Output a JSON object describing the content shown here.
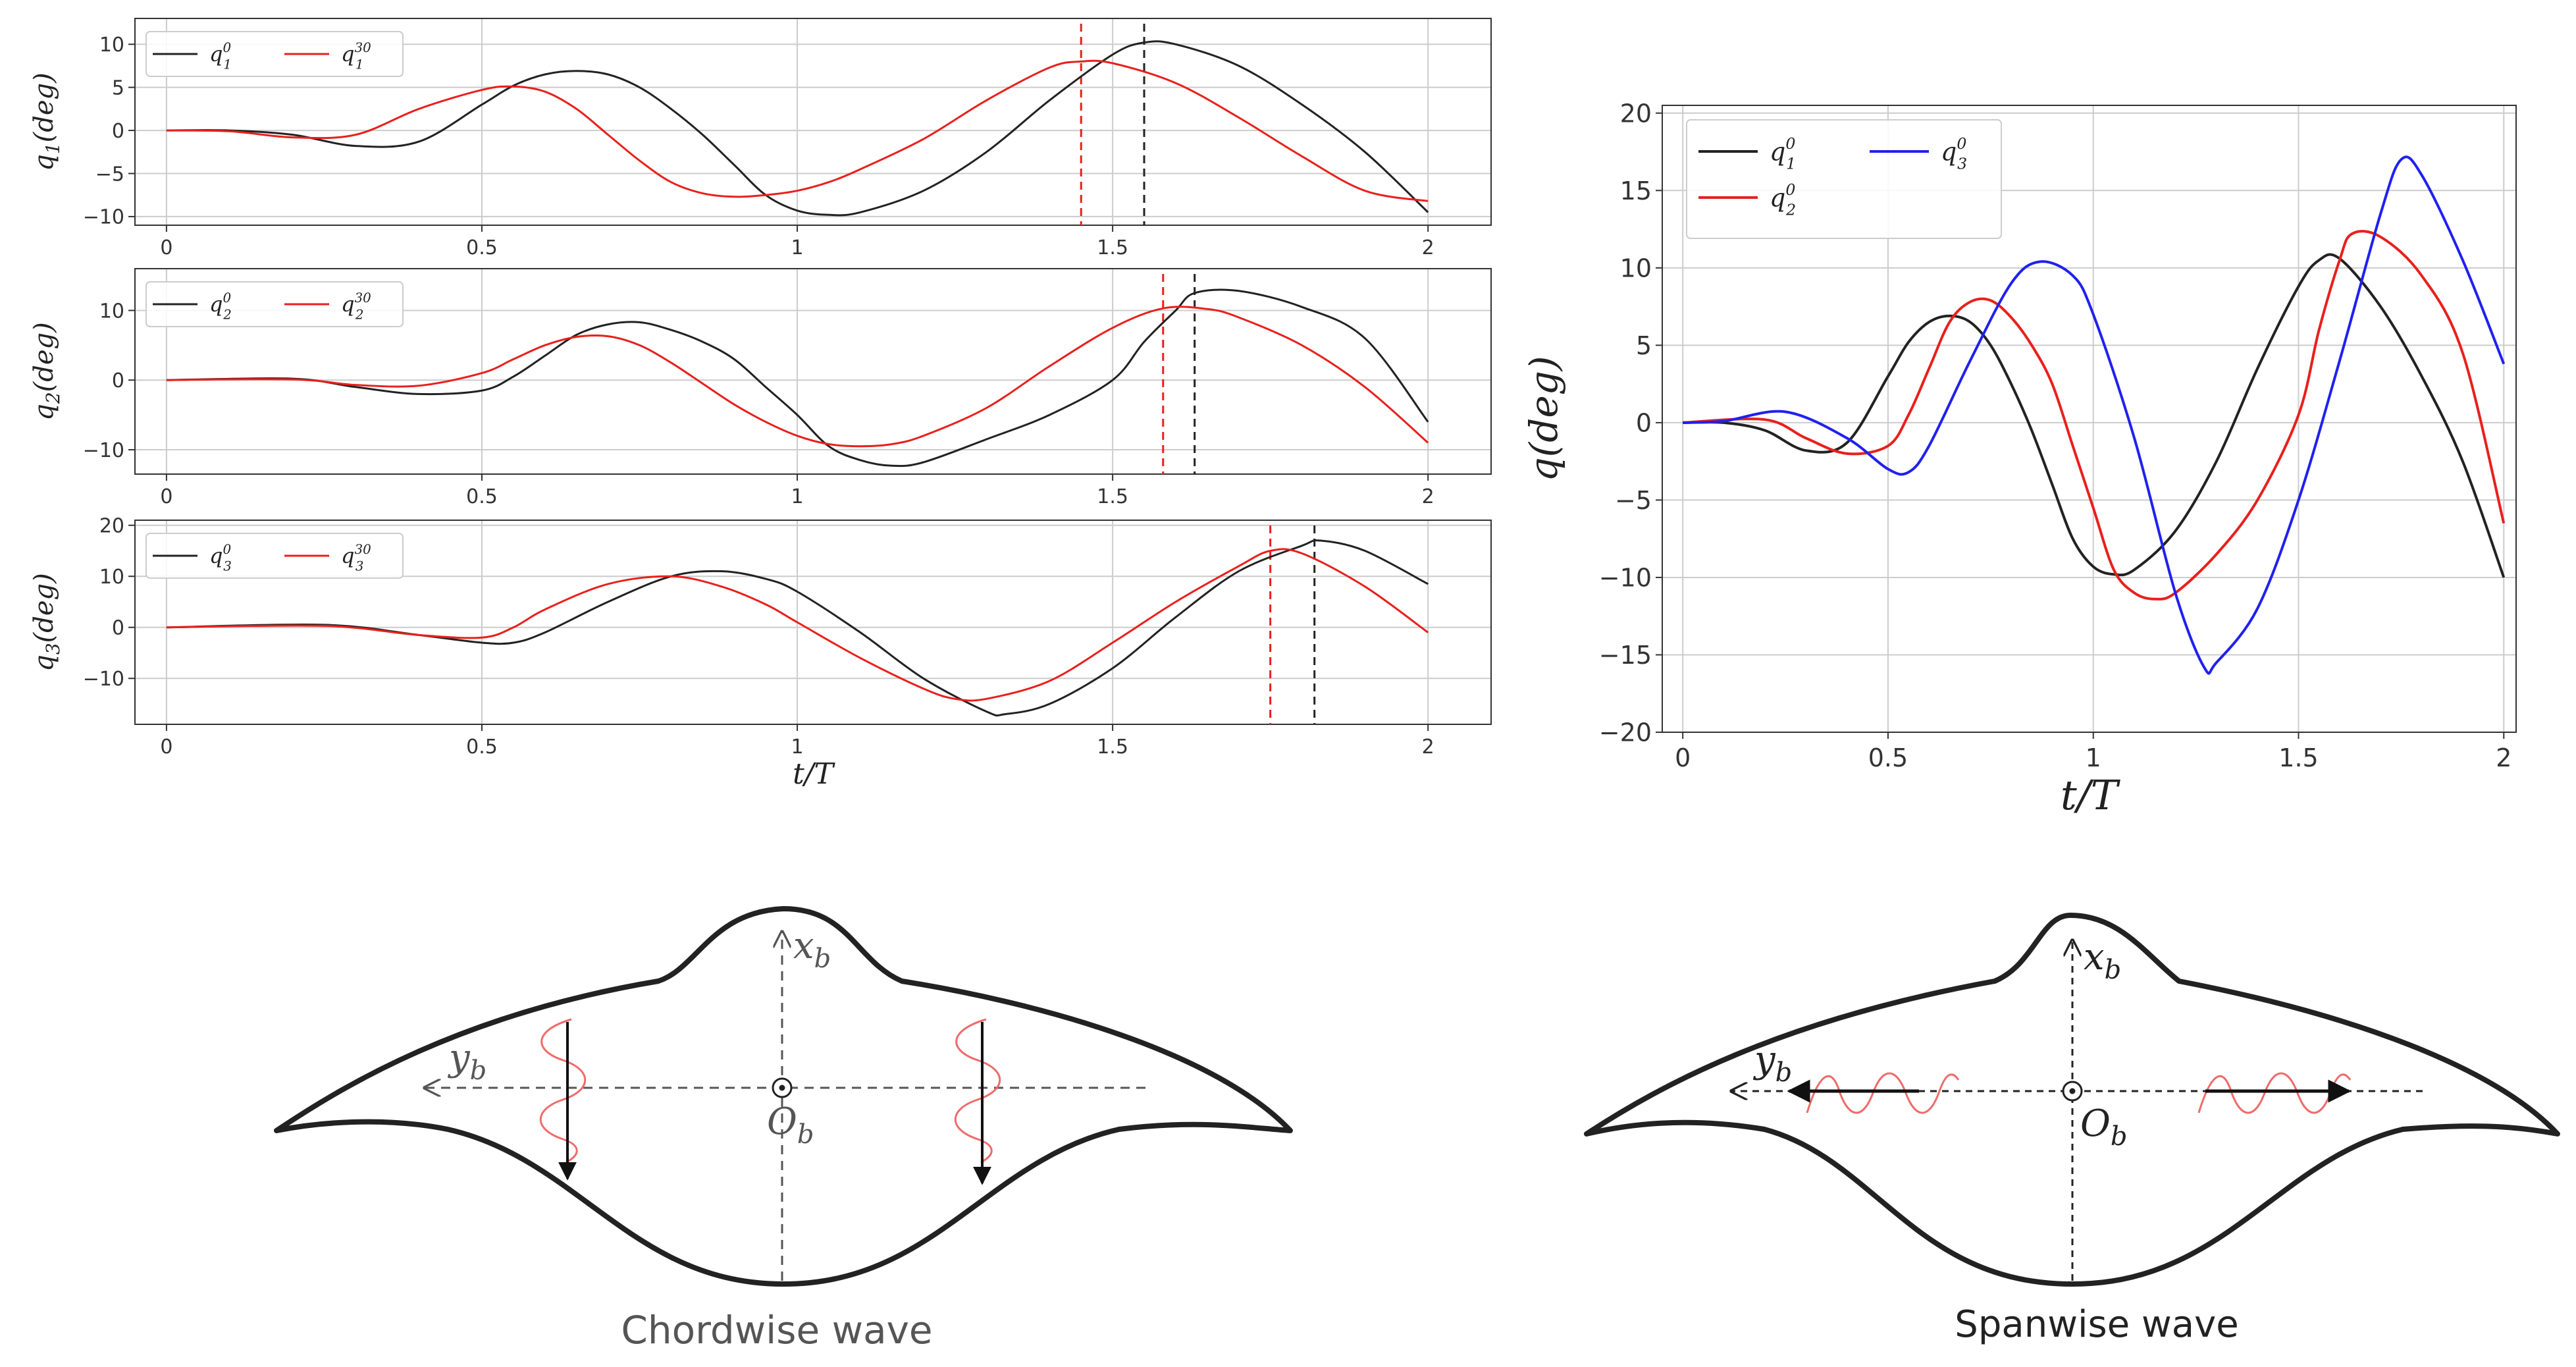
{
  "colors": {
    "black": "#222222",
    "red": "#e8201c",
    "blue": "#2020f0",
    "grid": "#cccccc"
  },
  "chart_data": [
    {
      "id": "p1",
      "type": "line",
      "ylabel": "q1(deg)",
      "xlabel": "",
      "xlim": [
        -0.05,
        2.1
      ],
      "ylim": [
        -11,
        13
      ],
      "xticks": [
        0,
        0.5,
        1,
        1.5,
        2
      ],
      "xtick_labels": [
        "0",
        "0.5",
        "1",
        "1.5",
        "2"
      ],
      "yticks": [
        -10,
        -5,
        0,
        5,
        10
      ],
      "ytick_labels": [
        "−10",
        "−5",
        "0",
        "5",
        "10"
      ],
      "legend": {
        "location": "top-left",
        "columns": 2
      },
      "series": [
        {
          "name": "q",
          "sub": "1",
          "sup": "0",
          "label": "q_1^0",
          "color_key": "black",
          "x": [
            0,
            0.1,
            0.2,
            0.3,
            0.4,
            0.5,
            0.55,
            0.6,
            0.65,
            0.7,
            0.75,
            0.8,
            0.85,
            0.9,
            0.95,
            1.0,
            1.05,
            1.1,
            1.2,
            1.3,
            1.4,
            1.5,
            1.55,
            1.6,
            1.7,
            1.8,
            1.9,
            2.0
          ],
          "y": [
            0,
            0,
            -0.5,
            -1.8,
            -1.3,
            3.0,
            5.2,
            6.5,
            6.9,
            6.5,
            5.0,
            2.5,
            -0.5,
            -4.0,
            -7.5,
            -9.3,
            -9.8,
            -9.5,
            -7.0,
            -2.5,
            3.5,
            8.8,
            10.2,
            10.0,
            7.5,
            3.0,
            -2.5,
            -9.5
          ]
        },
        {
          "name": "q",
          "sub": "1",
          "sup": "30",
          "label": "q_1^30",
          "color_key": "red",
          "x": [
            0,
            0.1,
            0.2,
            0.3,
            0.4,
            0.5,
            0.55,
            0.6,
            0.65,
            0.7,
            0.75,
            0.8,
            0.85,
            0.9,
            0.95,
            1.0,
            1.05,
            1.1,
            1.2,
            1.3,
            1.4,
            1.45,
            1.5,
            1.6,
            1.7,
            1.8,
            1.9,
            2.0
          ],
          "y": [
            0,
            -0.1,
            -0.8,
            -0.5,
            2.5,
            4.7,
            5.1,
            4.5,
            2.5,
            -0.5,
            -3.5,
            -6.0,
            -7.3,
            -7.7,
            -7.5,
            -7.0,
            -6.0,
            -4.5,
            -1.0,
            3.5,
            7.3,
            8.0,
            7.8,
            5.5,
            1.5,
            -3.0,
            -7.0,
            -8.2
          ]
        }
      ],
      "vlines": [
        {
          "x": 1.45,
          "color_key": "red"
        },
        {
          "x": 1.55,
          "color_key": "black"
        }
      ]
    },
    {
      "id": "p2",
      "type": "line",
      "ylabel": "q2(deg)",
      "xlabel": "",
      "xlim": [
        -0.05,
        2.1
      ],
      "ylim": [
        -13.5,
        16
      ],
      "xticks": [
        0,
        0.5,
        1,
        1.5,
        2
      ],
      "xtick_labels": [
        "0",
        "0.5",
        "1",
        "1.5",
        "2"
      ],
      "yticks": [
        -10,
        0,
        10
      ],
      "ytick_labels": [
        "−10",
        "0",
        "10"
      ],
      "legend": {
        "location": "top-left",
        "columns": 2
      },
      "series": [
        {
          "name": "q",
          "sub": "2",
          "sup": "0",
          "label": "q_2^0",
          "color_key": "black",
          "x": [
            0,
            0.2,
            0.3,
            0.4,
            0.5,
            0.55,
            0.6,
            0.65,
            0.7,
            0.75,
            0.8,
            0.85,
            0.9,
            0.95,
            1.0,
            1.05,
            1.1,
            1.15,
            1.2,
            1.3,
            1.4,
            1.5,
            1.55,
            1.6,
            1.63,
            1.7,
            1.8,
            1.9,
            2.0
          ],
          "y": [
            0,
            0.2,
            -1.0,
            -2.0,
            -1.5,
            0.5,
            3.5,
            6.5,
            8.0,
            8.3,
            7.2,
            5.5,
            3.0,
            -1.0,
            -5.0,
            -9.5,
            -11.5,
            -12.3,
            -11.8,
            -8.5,
            -5.0,
            0,
            5.5,
            10.0,
            12.5,
            12.8,
            10.5,
            6.0,
            -6.0
          ]
        },
        {
          "name": "q",
          "sub": "2",
          "sup": "30",
          "label": "q_2^30",
          "color_key": "red",
          "x": [
            0,
            0.2,
            0.3,
            0.4,
            0.5,
            0.55,
            0.6,
            0.65,
            0.7,
            0.75,
            0.8,
            0.85,
            0.9,
            0.95,
            1.0,
            1.05,
            1.1,
            1.15,
            1.2,
            1.3,
            1.4,
            1.5,
            1.58,
            1.65,
            1.7,
            1.8,
            1.9,
            2.0
          ],
          "y": [
            0,
            0.1,
            -0.7,
            -0.8,
            1.0,
            3.0,
            5.0,
            6.2,
            6.3,
            5.0,
            2.5,
            -0.5,
            -3.5,
            -6.0,
            -8.0,
            -9.2,
            -9.5,
            -9.2,
            -8.0,
            -4.0,
            2.0,
            7.5,
            10.3,
            10.2,
            9.0,
            5.0,
            -1.0,
            -9.0
          ]
        }
      ],
      "vlines": [
        {
          "x": 1.58,
          "color_key": "red"
        },
        {
          "x": 1.63,
          "color_key": "black"
        }
      ]
    },
    {
      "id": "p3",
      "type": "line",
      "ylabel": "q3(deg)",
      "xlabel": "t/T",
      "xlim": [
        -0.05,
        2.1
      ],
      "ylim": [
        -19,
        21
      ],
      "xticks": [
        0,
        0.5,
        1,
        1.5,
        2
      ],
      "xtick_labels": [
        "0",
        "0.5",
        "1",
        "1.5",
        "2"
      ],
      "yticks": [
        -10,
        0,
        10,
        20
      ],
      "ytick_labels": [
        "−10",
        "0",
        "10",
        "20"
      ],
      "legend": {
        "location": "top-left",
        "columns": 2
      },
      "series": [
        {
          "name": "q",
          "sub": "3",
          "sup": "0",
          "label": "q_3^0",
          "color_key": "black",
          "x": [
            0,
            0.25,
            0.4,
            0.5,
            0.55,
            0.6,
            0.7,
            0.8,
            0.88,
            0.95,
            1.0,
            1.1,
            1.2,
            1.3,
            1.33,
            1.4,
            1.5,
            1.6,
            1.7,
            1.8,
            1.83,
            1.9,
            2.0
          ],
          "y": [
            0,
            0.5,
            -1.5,
            -3.0,
            -3.0,
            -1.0,
            5.0,
            10.0,
            11.0,
            9.5,
            7.0,
            -1.0,
            -10.0,
            -16.5,
            -17.0,
            -15.0,
            -8.0,
            2.0,
            11.0,
            16.0,
            17.0,
            15.0,
            8.5
          ]
        },
        {
          "name": "q",
          "sub": "3",
          "sup": "30",
          "label": "q_3^30",
          "color_key": "red",
          "x": [
            0,
            0.25,
            0.4,
            0.5,
            0.55,
            0.6,
            0.7,
            0.8,
            0.88,
            0.95,
            1.0,
            1.1,
            1.2,
            1.25,
            1.3,
            1.4,
            1.5,
            1.6,
            1.7,
            1.75,
            1.8,
            1.9,
            2.0
          ],
          "y": [
            0,
            0.3,
            -1.5,
            -2.0,
            0,
            3.5,
            8.5,
            10.0,
            8.0,
            4.5,
            1.0,
            -6.0,
            -12.0,
            -14.0,
            -14.0,
            -10.5,
            -3.0,
            5.0,
            12.0,
            15.0,
            14.5,
            8.0,
            -1.0
          ]
        }
      ],
      "vlines": [
        {
          "x": 1.75,
          "color_key": "red"
        },
        {
          "x": 1.82,
          "color_key": "black"
        }
      ]
    },
    {
      "id": "p4",
      "type": "line",
      "ylabel": "q(deg)",
      "xlabel": "t/T",
      "xlim": [
        -0.05,
        2.03
      ],
      "ylim": [
        -20,
        20.5
      ],
      "xticks": [
        0,
        0.5,
        1,
        1.5,
        2
      ],
      "xtick_labels": [
        "0",
        "0.5",
        "1",
        "1.5",
        "2"
      ],
      "yticks": [
        -20,
        -15,
        -10,
        -5,
        0,
        5,
        10,
        15,
        20
      ],
      "ytick_labels": [
        "−20",
        "−15",
        "−10",
        "−5",
        "0",
        "5",
        "10",
        "15",
        "20"
      ],
      "grid": true,
      "legend": {
        "location": "top-left",
        "columns": 2
      },
      "series": [
        {
          "name": "q",
          "sub": "1",
          "sup": "0",
          "label": "q_1^0",
          "color_key": "black",
          "x": [
            0,
            0.1,
            0.2,
            0.3,
            0.4,
            0.5,
            0.55,
            0.6,
            0.65,
            0.7,
            0.75,
            0.8,
            0.85,
            0.9,
            0.95,
            1.0,
            1.05,
            1.1,
            1.2,
            1.3,
            1.4,
            1.5,
            1.55,
            1.6,
            1.7,
            1.8,
            1.9,
            2.0
          ],
          "y": [
            0,
            0,
            -0.5,
            -1.8,
            -1.3,
            3.0,
            5.2,
            6.5,
            6.9,
            6.5,
            5.0,
            2.5,
            -0.5,
            -4.0,
            -7.5,
            -9.3,
            -9.8,
            -9.5,
            -7.0,
            -2.5,
            3.5,
            8.8,
            10.5,
            10.6,
            7.5,
            3.0,
            -2.5,
            -10.0
          ]
        },
        {
          "name": "q",
          "sub": "2",
          "sup": "0",
          "label": "q_2^0",
          "color_key": "red",
          "x": [
            0,
            0.2,
            0.3,
            0.4,
            0.5,
            0.55,
            0.6,
            0.65,
            0.7,
            0.75,
            0.8,
            0.85,
            0.9,
            0.95,
            1.0,
            1.05,
            1.1,
            1.15,
            1.2,
            1.3,
            1.4,
            1.5,
            1.55,
            1.6,
            1.63,
            1.7,
            1.8,
            1.9,
            2.0
          ],
          "y": [
            0,
            0.2,
            -1.0,
            -2.0,
            -1.5,
            0.5,
            3.5,
            6.5,
            7.8,
            7.9,
            6.8,
            5.0,
            2.5,
            -1.5,
            -5.5,
            -9.5,
            -11.0,
            -11.4,
            -11.0,
            -8.5,
            -5.0,
            0.5,
            6.0,
            10.5,
            12.2,
            12.0,
            9.5,
            4.5,
            -6.5
          ]
        },
        {
          "name": "q",
          "sub": "3",
          "sup": "0",
          "label": "q_3^0",
          "color_key": "blue",
          "x": [
            0,
            0.1,
            0.25,
            0.4,
            0.5,
            0.55,
            0.6,
            0.7,
            0.8,
            0.87,
            0.95,
            1.0,
            1.1,
            1.2,
            1.27,
            1.3,
            1.4,
            1.5,
            1.6,
            1.7,
            1.75,
            1.8,
            1.9,
            2.0
          ],
          "y": [
            0,
            0.1,
            0.7,
            -1.0,
            -3.0,
            -3.2,
            -1.5,
            4.0,
            9.0,
            10.4,
            9.5,
            7.0,
            -1.0,
            -11.0,
            -15.8,
            -15.5,
            -12.0,
            -5.0,
            4.0,
            13.5,
            17.0,
            16.0,
            10.5,
            3.8
          ]
        }
      ],
      "vlines": []
    }
  ],
  "diagrams": {
    "chordwise": {
      "caption": "Chordwise wave",
      "x_label": "x",
      "x_sub": "b",
      "y_label": "y",
      "y_sub": "b",
      "o_label": "O",
      "o_sub": "b"
    },
    "spanwise": {
      "caption": "Spanwise wave",
      "x_label": "x",
      "x_sub": "b",
      "y_label": "y",
      "y_sub": "b",
      "o_label": "O",
      "o_sub": "b"
    }
  }
}
